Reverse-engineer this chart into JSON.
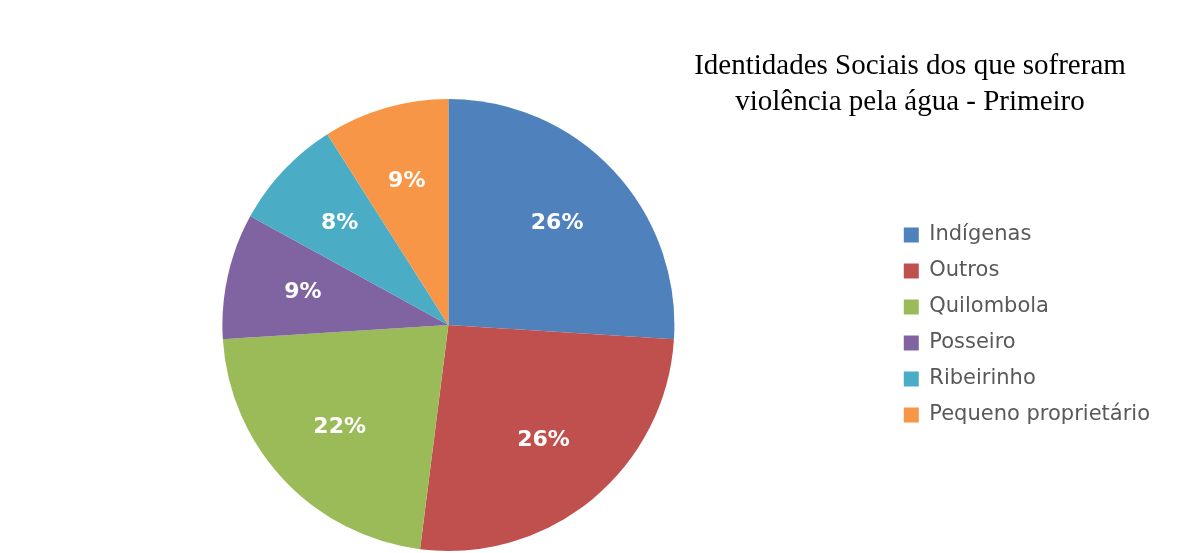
{
  "chart_data": {
    "type": "pie",
    "title": "Identidades Sociais dos que sofreram violência pela água - Primeiro",
    "categories": [
      "Indígenas",
      "Outros",
      "Quilombola",
      "Posseiro",
      "Ribeirinho",
      "Pequeno proprietário"
    ],
    "values": [
      26,
      26,
      22,
      9,
      8,
      9
    ],
    "colors": [
      "#4f81bd",
      "#c0504d",
      "#9bbb59",
      "#8064a2",
      "#4bacc6",
      "#f79646"
    ],
    "value_labels": [
      "26%",
      "26%",
      "22%",
      "9%",
      "8%",
      "9%"
    ],
    "legend": "right"
  }
}
